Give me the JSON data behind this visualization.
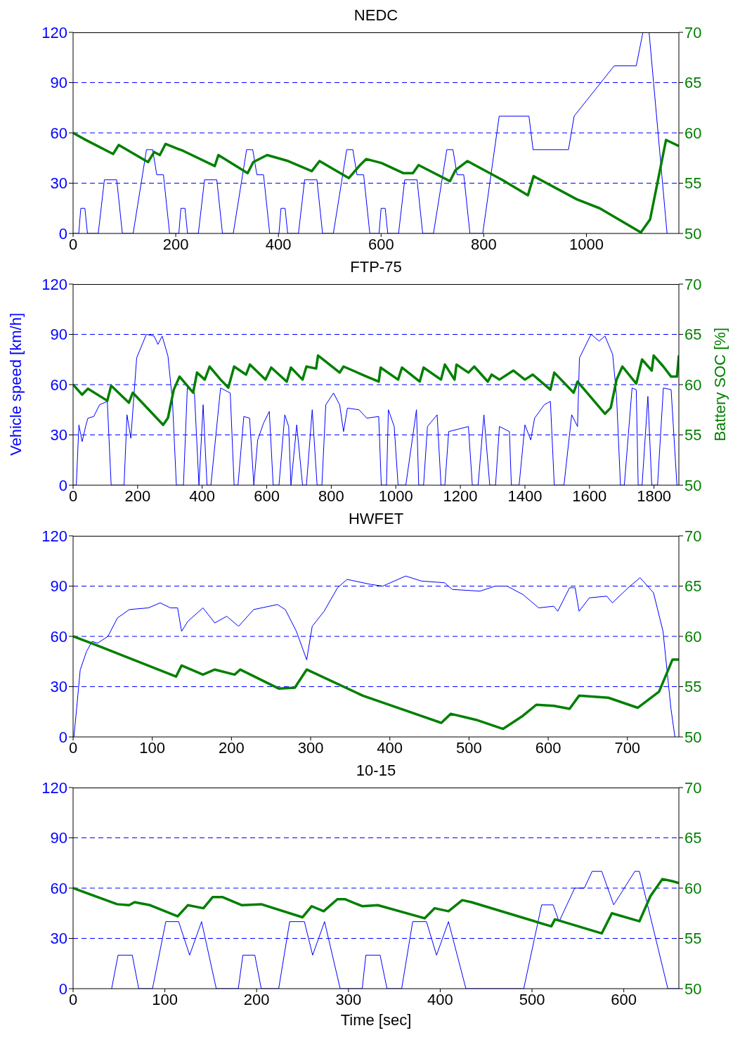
{
  "chart_data": [
    {
      "type": "line",
      "title": "NEDC",
      "xlim": [
        0,
        1180
      ],
      "xticks": [
        0,
        200,
        400,
        600,
        800,
        1000
      ],
      "ylim": [
        0,
        120
      ],
      "yticks": [
        0,
        30,
        60,
        90,
        120
      ],
      "y2lim": [
        50,
        70
      ],
      "y2ticks": [
        50,
        55,
        60,
        65,
        70
      ],
      "grid": "y",
      "series": [
        {
          "color": "#0000ff",
          "x": [
            0,
            11,
            15,
            23,
            28,
            49,
            61,
            85,
            96,
            117,
            143,
            155,
            163,
            176,
            188,
            206,
            210,
            218,
            223,
            244,
            256,
            280,
            291,
            312,
            338,
            350,
            358,
            371,
            383,
            401,
            405,
            413,
            418,
            439,
            451,
            475,
            486,
            507,
            533,
            545,
            553,
            566,
            578,
            596,
            600,
            608,
            613,
            634,
            646,
            670,
            681,
            702,
            728,
            740,
            748,
            761,
            773,
            798,
            830,
            888,
            896,
            965,
            976,
            1054,
            1097,
            1110,
            1122,
            1157
          ],
          "values": [
            0,
            0,
            15,
            15,
            0,
            0,
            32,
            32,
            0,
            0,
            50,
            50,
            35,
            35,
            0,
            0,
            15,
            15,
            0,
            0,
            32,
            32,
            0,
            0,
            50,
            50,
            35,
            35,
            0,
            0,
            15,
            15,
            0,
            0,
            32,
            32,
            0,
            0,
            50,
            50,
            35,
            35,
            0,
            0,
            15,
            15,
            0,
            0,
            32,
            32,
            0,
            0,
            50,
            50,
            35,
            35,
            0,
            0,
            70,
            70,
            50,
            50,
            70,
            100,
            100,
            120,
            120,
            0
          ]
        },
        {
          "color": "#007f00",
          "axis": "y2",
          "x": [
            0,
            21,
            78,
            89,
            146,
            158,
            169,
            180,
            215,
            276,
            283,
            340,
            351,
            378,
            419,
            465,
            480,
            537,
            559,
            571,
            601,
            643,
            662,
            673,
            734,
            745,
            768,
            837,
            886,
            897,
            981,
            1026,
            1106,
            1124,
            1155,
            1180
          ],
          "values": [
            60,
            59.4,
            57.9,
            58.8,
            57.1,
            58.1,
            57.8,
            58.9,
            58.2,
            56.7,
            57.8,
            56,
            57.1,
            57.8,
            57.2,
            56.2,
            57.2,
            55.5,
            56.8,
            57.4,
            57,
            56,
            56,
            56.8,
            55.2,
            56.3,
            57.2,
            55.3,
            53.8,
            55.7,
            53.4,
            52.5,
            50.1,
            51.4,
            59.3,
            58.7
          ]
        }
      ]
    },
    {
      "type": "line",
      "title": "FTP-75",
      "ylabel": "Vehicle speed [km/h]",
      "y2label": "Battery SOC [%]",
      "xlim": [
        0,
        1877
      ],
      "xticks": [
        0,
        200,
        400,
        600,
        800,
        1000,
        1200,
        1400,
        1600,
        1800
      ],
      "ylim": [
        0,
        120
      ],
      "yticks": [
        0,
        30,
        60,
        90,
        120
      ],
      "y2lim": [
        50,
        70
      ],
      "y2ticks": [
        50,
        55,
        60,
        65,
        70
      ],
      "grid": "y",
      "series": [
        {
          "color": "#0000ff",
          "x": [
            0,
            10,
            18,
            28,
            40,
            46,
            64,
            82,
            106,
            118,
            158,
            167,
            179,
            197,
            227,
            251,
            263,
            276,
            294,
            308,
            320,
            342,
            354,
            376,
            390,
            403,
            415,
            427,
            457,
            487,
            499,
            511,
            529,
            547,
            560,
            572,
            590,
            608,
            620,
            638,
            656,
            668,
            675,
            693,
            711,
            723,
            741,
            756,
            771,
            783,
            807,
            826,
            838,
            850,
            886,
            910,
            947,
            955,
            971,
            977,
            995,
            1007,
            1031,
            1064,
            1071,
            1086,
            1098,
            1128,
            1140,
            1152,
            1164,
            1225,
            1237,
            1255,
            1273,
            1291,
            1309,
            1321,
            1352,
            1358,
            1382,
            1400,
            1418,
            1430,
            1460,
            1479,
            1491,
            1521,
            1545,
            1563,
            1569,
            1605,
            1630,
            1648,
            1672,
            1684,
            1696,
            1708,
            1732,
            1745,
            1751,
            1763,
            1781,
            1793,
            1811,
            1829,
            1853,
            1871,
            1877
          ],
          "values": [
            0,
            0,
            36,
            26,
            36,
            40,
            41,
            48,
            50,
            0,
            0,
            42,
            28,
            76,
            90,
            89,
            84,
            89,
            77,
            50,
            0,
            0,
            58,
            55,
            0,
            48,
            0,
            0,
            58,
            55,
            0,
            0,
            41,
            40,
            0,
            27,
            37,
            44,
            0,
            0,
            42,
            35,
            0,
            36,
            0,
            0,
            45,
            0,
            0,
            48,
            55,
            48,
            32,
            46,
            45,
            40,
            41,
            0,
            0,
            45,
            35,
            0,
            0,
            45,
            0,
            0,
            35,
            42,
            0,
            0,
            32,
            35,
            0,
            0,
            42,
            0,
            0,
            35,
            32,
            0,
            0,
            36,
            27,
            40,
            48,
            50,
            0,
            0,
            42,
            35,
            76,
            90,
            86,
            89,
            78,
            53,
            0,
            0,
            58,
            57,
            0,
            0,
            53,
            0,
            0,
            58,
            57,
            0,
            0
          ]
        },
        {
          "color": "#007f00",
          "axis": "y2",
          "x": [
            0,
            28,
            46,
            106,
            118,
            173,
            185,
            279,
            294,
            312,
            330,
            372,
            384,
            408,
            423,
            457,
            481,
            499,
            536,
            548,
            596,
            614,
            662,
            675,
            711,
            723,
            753,
            759,
            826,
            838,
            910,
            947,
            953,
            1007,
            1019,
            1074,
            1086,
            1140,
            1152,
            1182,
            1188,
            1225,
            1243,
            1285,
            1297,
            1321,
            1364,
            1400,
            1424,
            1479,
            1491,
            1551,
            1563,
            1648,
            1666,
            1684,
            1702,
            1745,
            1763,
            1793,
            1799,
            1829,
            1853,
            1871,
            1877
          ],
          "values": [
            60,
            59,
            59.6,
            58.4,
            59.9,
            58.2,
            59.2,
            56,
            56.7,
            59.5,
            60.8,
            59.2,
            61.2,
            60.5,
            61.8,
            60.5,
            59.7,
            61.8,
            61,
            62,
            60.5,
            61.7,
            60.3,
            61.7,
            60.5,
            61.8,
            61.6,
            62.9,
            61.2,
            61.8,
            60.8,
            60.3,
            61.7,
            60.5,
            61.7,
            60.3,
            61.7,
            60.5,
            62,
            60.5,
            62,
            61.2,
            61.8,
            60.3,
            61,
            60.5,
            61.4,
            60.5,
            61,
            59.5,
            61.2,
            59.2,
            60.3,
            57.1,
            57.7,
            60.5,
            61.8,
            60.1,
            62.5,
            61.4,
            62.9,
            61.8,
            60.8,
            60.8,
            62.9
          ]
        }
      ]
    },
    {
      "type": "line",
      "title": "HWFET",
      "xlim": [
        0,
        765
      ],
      "xticks": [
        0,
        100,
        200,
        300,
        400,
        500,
        600,
        700
      ],
      "ylim": [
        0,
        120
      ],
      "yticks": [
        0,
        30,
        60,
        90,
        120
      ],
      "y2lim": [
        50,
        70
      ],
      "y2ticks": [
        50,
        55,
        60,
        65,
        70
      ],
      "grid": "y",
      "series": [
        {
          "color": "#0000ff",
          "x": [
            1,
            4.5,
            9,
            17,
            24,
            31,
            44,
            56,
            71,
            95,
            110,
            123,
            132,
            137,
            145,
            164,
            179,
            194,
            209,
            228,
            258,
            268,
            282,
            295,
            302,
            317,
            334,
            346,
            376,
            391,
            420,
            440,
            469,
            479,
            514,
            533,
            548,
            568,
            588,
            607,
            612,
            627,
            634,
            639,
            652,
            674,
            681,
            701,
            716,
            733,
            745,
            755,
            760
          ],
          "values": [
            0,
            17,
            40,
            51,
            57,
            56,
            60,
            71,
            76,
            77,
            80,
            77,
            77,
            63,
            69,
            77,
            68,
            72,
            66,
            76,
            79,
            76,
            63,
            46,
            66,
            75,
            89,
            94,
            91,
            90,
            96,
            93,
            92,
            88,
            87,
            90,
            90,
            85,
            77,
            78,
            75,
            89,
            89,
            75,
            83,
            84,
            80,
            89,
            95,
            86,
            63,
            17,
            0
          ]
        },
        {
          "color": "#007f00",
          "axis": "y2",
          "x": [
            0,
            27,
            130,
            137,
            164,
            179,
            204,
            211,
            260,
            280,
            295,
            366,
            465,
            477,
            509,
            543,
            568,
            585,
            607,
            627,
            639,
            676,
            713,
            740,
            757,
            765
          ],
          "values": [
            60,
            59.2,
            56,
            57.1,
            56.2,
            56.7,
            56.2,
            56.7,
            54.8,
            54.9,
            56.7,
            54.1,
            51.4,
            52.3,
            51.7,
            50.8,
            52.1,
            53.2,
            53.1,
            52.8,
            54.1,
            53.9,
            52.9,
            54.5,
            57.7,
            57.7
          ]
        }
      ]
    },
    {
      "type": "line",
      "title": "10-15",
      "xlabel": "Time [sec]",
      "xlim": [
        0,
        660
      ],
      "xticks": [
        0,
        100,
        200,
        300,
        400,
        500,
        600
      ],
      "ylim": [
        0,
        120
      ],
      "yticks": [
        0,
        30,
        60,
        90,
        120
      ],
      "y2lim": [
        50,
        70
      ],
      "y2ticks": [
        50,
        55,
        60,
        65,
        70
      ],
      "grid": "y",
      "series": [
        {
          "color": "#0000ff",
          "x": [
            42,
            49,
            64.5,
            71.5,
            86.5,
            101,
            115,
            127,
            140,
            156,
            180,
            185,
            198,
            205,
            224,
            236,
            252,
            261,
            274,
            291,
            315,
            319,
            334.5,
            342,
            358,
            370,
            385,
            396,
            409,
            428,
            491,
            510.5,
            523,
            529.5,
            546.5,
            557,
            565.5,
            576,
            589,
            612,
            617,
            648,
            660
          ],
          "values": [
            0,
            20,
            20,
            0,
            0,
            40,
            40,
            20,
            40,
            0,
            0,
            20,
            20,
            0,
            0,
            40,
            40,
            20,
            40,
            0,
            0,
            20,
            20,
            0,
            0,
            40,
            40,
            20,
            40,
            0,
            0,
            50,
            50,
            40,
            60,
            60,
            70,
            70,
            50,
            70,
            70,
            0,
            0
          ]
        },
        {
          "color": "#007f00",
          "axis": "y2",
          "x": [
            0,
            48,
            61,
            67,
            84,
            114,
            125,
            142,
            152,
            163,
            184,
            205,
            250,
            260,
            273,
            288,
            296,
            315,
            332,
            383,
            394,
            409,
            424,
            434,
            521,
            525,
            576,
            587,
            617,
            629,
            642,
            652.5,
            660
          ],
          "values": [
            60,
            58.4,
            58.3,
            58.6,
            58.3,
            57.2,
            58.3,
            58,
            59.1,
            59.1,
            58.3,
            58.4,
            57.1,
            58.2,
            57.7,
            58.9,
            58.9,
            58.2,
            58.3,
            57,
            58,
            57.7,
            58.8,
            58.6,
            56.2,
            56.9,
            55.5,
            57.5,
            56.7,
            59.2,
            60.9,
            60.7,
            60.5
          ]
        }
      ]
    }
  ]
}
